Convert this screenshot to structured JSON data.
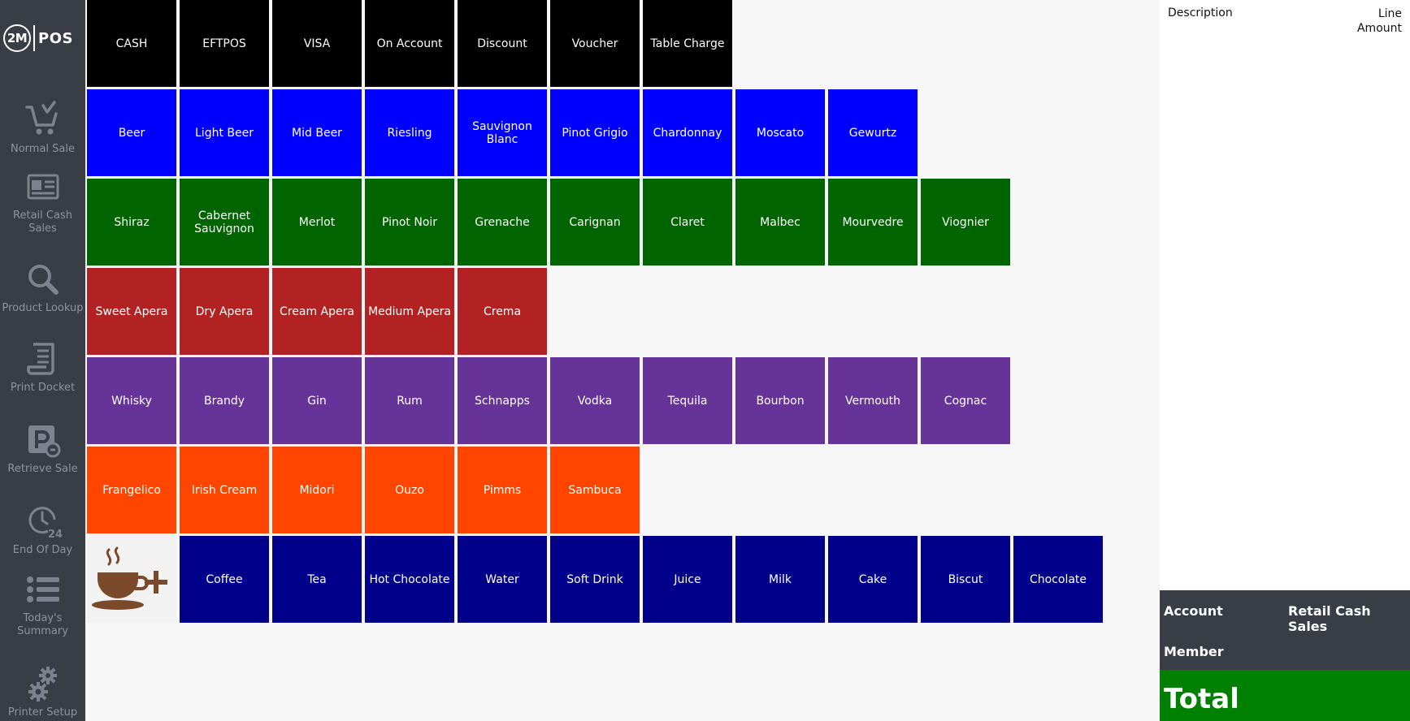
{
  "logo": {
    "left": "2M",
    "right": "POS"
  },
  "sidebar": {
    "items": [
      {
        "label": "Normal Sale",
        "icon": "cart-icon"
      },
      {
        "label": "Retail Cash Sales",
        "icon": "id-card-icon"
      },
      {
        "label": "Product Lookup",
        "icon": "search-icon"
      },
      {
        "label": "Print Docket",
        "icon": "scroll-icon"
      },
      {
        "label": "Retrieve Sale",
        "icon": "parking-icon"
      },
      {
        "label": "End Of Day",
        "icon": "clock-24-icon"
      },
      {
        "label": "Today's Summary",
        "icon": "list-icon"
      },
      {
        "label": "Printer Setup",
        "icon": "gears-icon"
      }
    ]
  },
  "rows": [
    {
      "color": "#000000",
      "tiles": [
        "CASH",
        "EFTPOS",
        "VISA",
        "On Account",
        "Discount",
        "Voucher",
        "Table Charge"
      ]
    },
    {
      "color": "#0000ff",
      "tiles": [
        "Beer",
        "Light Beer",
        "Mid Beer",
        "Riesling",
        "Sauvignon Blanc",
        "Pinot Grigio",
        "Chardonnay",
        "Moscato",
        "Gewurtz"
      ]
    },
    {
      "color": "#006400",
      "tiles": [
        "Shiraz",
        "Cabernet Sauvignon",
        "Merlot",
        "Pinot Noir",
        "Grenache",
        "Carignan",
        "Claret",
        "Malbec",
        "Mourvedre",
        "Viognier"
      ]
    },
    {
      "color": "#b22222",
      "tiles": [
        "Sweet Apera",
        "Dry Apera",
        "Cream Apera",
        "Medium Apera",
        "Crema"
      ]
    },
    {
      "color": "#663399",
      "tiles": [
        "Whisky",
        "Brandy",
        "Gin",
        "Rum",
        "Schnapps",
        "Vodka",
        "Tequila",
        "Bourbon",
        "Vermouth",
        "Cognac"
      ]
    },
    {
      "color": "#ff4500",
      "tiles": [
        "Frangelico",
        "Irish Cream",
        "Midori",
        "Ouzo",
        "Pimms",
        "Sambuca"
      ]
    },
    {
      "color": "#00008b",
      "image_tile": "coffee-add-icon",
      "tiles": [
        "Coffee",
        "Tea",
        "Hot Chocolate",
        "Water",
        "Soft Drink",
        "Juice",
        "Milk",
        "Cake",
        "Biscut",
        "Chocolate"
      ]
    }
  ],
  "receipt": {
    "description_header": "Description",
    "amount_header": "Line Amount"
  },
  "account": {
    "account_label": "Account",
    "account_value": "Retail Cash Sales",
    "member_label": "Member"
  },
  "total": {
    "label": "Total"
  },
  "colors": {
    "sidebar": "#393e46",
    "total": "#008000",
    "background": "#f7f7f7"
  }
}
